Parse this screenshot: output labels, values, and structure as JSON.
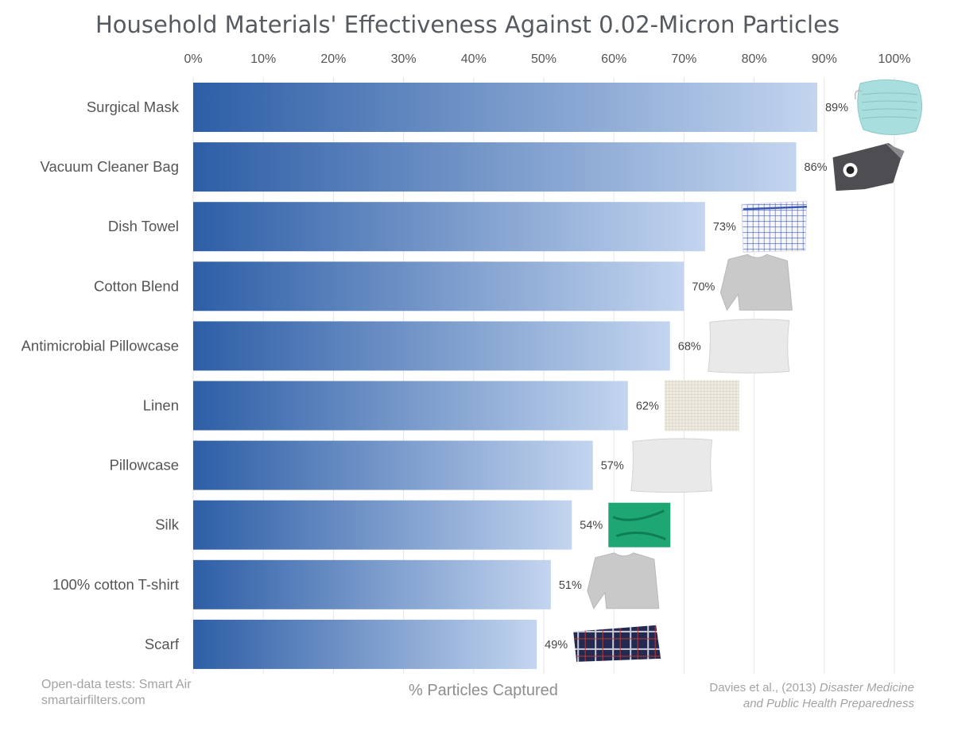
{
  "title": "Household Materials' Effectiveness Against 0.02-Micron Particles",
  "source_left": [
    "Open-data tests: Smart Air",
    "smartairfilters.com"
  ],
  "source_right": {
    "authors": "Davies et al., (2013)",
    "journal_line1": "Disaster Medicine",
    "journal_line2": "and Public Health Preparedness"
  },
  "chart_data": {
    "type": "bar",
    "orientation": "horizontal",
    "title": "Household Materials' Effectiveness Against 0.02-Micron Particles",
    "xlabel": "% Particles Captured",
    "ylabel": "",
    "xlim": [
      0,
      100
    ],
    "x_ticks": [
      "0%",
      "10%",
      "20%",
      "30%",
      "40%",
      "50%",
      "60%",
      "70%",
      "80%",
      "90%",
      "100%"
    ],
    "x_tick_values": [
      0,
      10,
      20,
      30,
      40,
      50,
      60,
      70,
      80,
      90,
      100
    ],
    "tick_position": "top",
    "grid": true,
    "categories": [
      "Surgical Mask",
      "Vacuum Cleaner Bag",
      "Dish Towel",
      "Cotton Blend",
      "Antimicrobial Pillowcase",
      "Linen",
      "Pillowcase",
      "Silk",
      "100% cotton T-shirt",
      "Scarf"
    ],
    "values": [
      89,
      86,
      73,
      70,
      68,
      62,
      57,
      54,
      51,
      49
    ],
    "value_labels": [
      "89%",
      "86%",
      "73%",
      "70%",
      "68%",
      "62%",
      "57%",
      "54%",
      "51%",
      "49%"
    ],
    "item_icons": [
      "surgical-mask-icon",
      "vacuum-bag-icon",
      "dish-towel-icon",
      "cotton-blend-shirt-icon",
      "pillow-icon",
      "linen-swatch-icon",
      "pillow-icon",
      "silk-swatch-icon",
      "tshirt-icon",
      "scarf-icon"
    ],
    "colors": {
      "bar_start": "#2d5ea6",
      "bar_end": "#c3d5ef",
      "grid": "#e6e6e6",
      "label": "#555555",
      "tick": "#555555"
    }
  }
}
